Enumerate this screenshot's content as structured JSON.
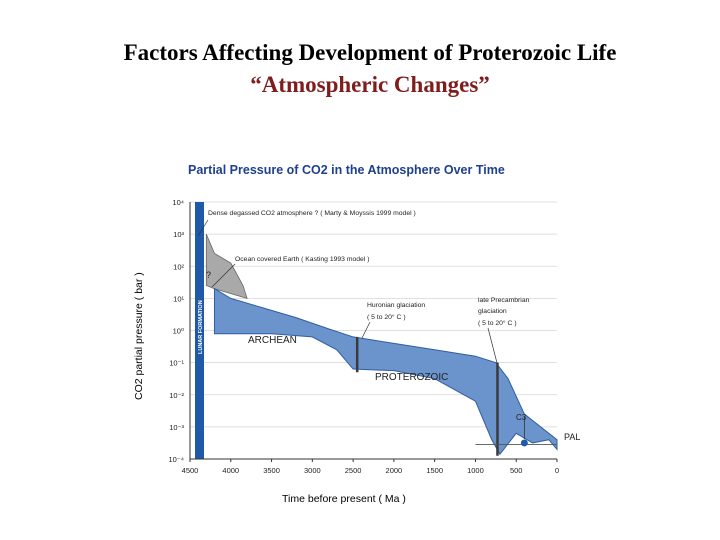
{
  "slide": {
    "title": "Factors Affecting Development of Proterozoic Life",
    "subtitle": "“Atmospheric Changes”"
  },
  "colors": {
    "title": "#000000",
    "subtitle": "#7f1d1d",
    "chart_title": "#1f3f8f",
    "band_fill": "#6b93cc",
    "band_stroke": "#2f5f9f",
    "early_fill": "#a9a9a9",
    "lunar_bar": "#1e5aa8",
    "glaciation_line": "#3a3a3a",
    "marker": "#1e5aa8"
  },
  "chart_data": {
    "type": "area",
    "title": "Partial Pressure of CO2 in the Atmosphere Over Time",
    "xlabel": "Time before present ( Ma )",
    "ylabel": "CO2 partial pressure ( bar )",
    "x_reversed": true,
    "xlim": [
      4500,
      0
    ],
    "ylim": [
      0.0001,
      10000
    ],
    "y_scale": "log",
    "grid": true,
    "x_ticks": [
      "4500",
      "4000",
      "3500",
      "3000",
      "2500",
      "2000",
      "1500",
      "1000",
      "500",
      "0"
    ],
    "x_tick_values": [
      4500,
      4000,
      3500,
      3000,
      2500,
      2000,
      1500,
      1000,
      500,
      0
    ],
    "y_ticks": [
      "10⁴",
      "10³",
      "10²",
      "10¹",
      "10⁰",
      "10⁻¹",
      "10⁻²",
      "10⁻³",
      "10⁻⁴"
    ],
    "y_tick_exponents": [
      4,
      3,
      2,
      1,
      0,
      -1,
      -2,
      -3,
      -4
    ],
    "band_upper": [
      {
        "t": 4200,
        "log_p": 1.3
      },
      {
        "t": 4000,
        "log_p": 1.0
      },
      {
        "t": 3600,
        "log_p": 0.7
      },
      {
        "t": 3200,
        "log_p": 0.4
      },
      {
        "t": 2800,
        "log_p": 0.05
      },
      {
        "t": 2500,
        "log_p": -0.2
      },
      {
        "t": 2000,
        "log_p": -0.4
      },
      {
        "t": 1500,
        "log_p": -0.6
      },
      {
        "t": 1000,
        "log_p": -0.8
      },
      {
        "t": 750,
        "log_p": -1.0
      }
    ],
    "band_lower": [
      {
        "t": 4200,
        "log_p": -0.1
      },
      {
        "t": 3500,
        "log_p": -0.1
      },
      {
        "t": 3000,
        "log_p": -0.2
      },
      {
        "t": 2700,
        "log_p": -0.6
      },
      {
        "t": 2500,
        "log_p": -1.2
      },
      {
        "t": 2000,
        "log_p": -1.25
      },
      {
        "t": 1500,
        "log_p": -1.5
      },
      {
        "t": 1000,
        "log_p": -2.2
      },
      {
        "t": 800,
        "log_p": -3.4
      },
      {
        "t": 700,
        "log_p": -3.85
      }
    ],
    "phanerozoic": [
      {
        "t": 700,
        "log_p": -3.85
      },
      {
        "t": 500,
        "log_p": -3.2
      },
      {
        "t": 300,
        "log_p": -3.5
      },
      {
        "t": 100,
        "log_p": -3.4
      },
      {
        "t": 0,
        "log_p": -3.7
      }
    ],
    "early_atmosphere": [
      {
        "t": 4300,
        "log_p": 3.0
      },
      {
        "t": 4200,
        "log_p": 2.4
      },
      {
        "t": 4000,
        "log_p": 2.1
      },
      {
        "t": 3850,
        "log_p": 1.4
      },
      {
        "t": 3800,
        "log_p": 1.0
      }
    ],
    "glaciations": [
      {
        "t": 2450,
        "log_p_top": -0.2,
        "log_p_bottom": -1.3
      },
      {
        "t": 730,
        "log_p_top": -1.0,
        "log_p_bottom": -3.9
      }
    ],
    "c3_point": {
      "t": 400,
      "log_p": -3.5
    },
    "pal_level_log_p": -3.55,
    "region_labels": [
      "ARCHEAN",
      "PROTEROZOIC",
      "?"
    ],
    "vertical_band_label": "LUNAR FORMATION",
    "annotations": [
      "Dense degassed CO2 atmosphere ? ( Marty & Moyssis 1999 model )",
      "Ocean covered Earth ( Kasting 1993 model )",
      "Huronian glaciation",
      "( 5 to 20° C )",
      "late Precambrian",
      "glaciation",
      "( 5 to 20° C )",
      "C3",
      "PAL"
    ]
  }
}
